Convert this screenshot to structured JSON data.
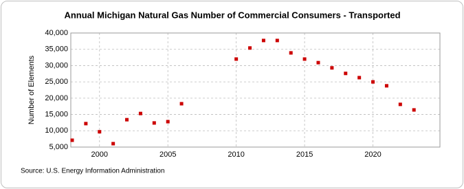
{
  "chart_data": {
    "type": "scatter",
    "title": "Annual Michigan Natural Gas Number of Commercial Consumers - Transported",
    "y_label": "Number of Elements",
    "source": "Source: U.S. Energy Information Administration",
    "color": "#cc0000",
    "grid": true,
    "x": [
      1998,
      1999,
      2000,
      2001,
      2002,
      2003,
      2004,
      2005,
      2006,
      2010,
      2011,
      2012,
      2013,
      2014,
      2015,
      2016,
      2017,
      2018,
      2019,
      2020,
      2021,
      2022,
      2023
    ],
    "values": [
      7100,
      12200,
      9700,
      6050,
      13400,
      15300,
      12400,
      12800,
      18300,
      32000,
      35400,
      37700,
      37700,
      33900,
      32000,
      30900,
      29300,
      27600,
      26300,
      25000,
      23800,
      18100,
      16400
    ],
    "xlim": [
      1997.9,
      2024.9
    ],
    "xticks": [
      2000,
      2005,
      2010,
      2015,
      2020
    ],
    "ylim": [
      5000,
      40000
    ],
    "yticks": [
      {
        "value": 5000,
        "label": "5,000"
      },
      {
        "value": 10000,
        "label": "10,000"
      },
      {
        "value": 15000,
        "label": "15,000"
      },
      {
        "value": 20000,
        "label": "20,000"
      },
      {
        "value": 25000,
        "label": "25,000"
      },
      {
        "value": 30000,
        "label": "30,000"
      },
      {
        "value": 35000,
        "label": "35,000"
      },
      {
        "value": 40000,
        "label": "40,000"
      }
    ]
  }
}
